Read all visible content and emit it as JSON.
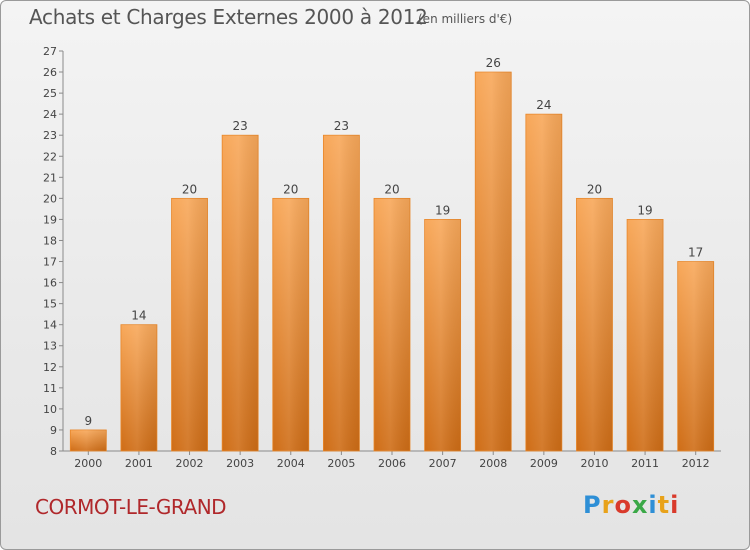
{
  "header": {
    "title": "Achats et Charges Externes 2000 à 2012",
    "unit": "(en milliers d'€)"
  },
  "footer": {
    "city": "CORMOT-LE-GRAND",
    "logo_letters": [
      "P",
      "r",
      "o",
      "x",
      "i",
      "t",
      "i"
    ],
    "logo_colors": [
      "#2e8fd6",
      "#e8a21a",
      "#d93a2b",
      "#3aa847",
      "#2e8fd6",
      "#e8a21a",
      "#d93a2b"
    ]
  },
  "chart_data": {
    "type": "bar",
    "categories": [
      "2000",
      "2001",
      "2002",
      "2003",
      "2004",
      "2005",
      "2006",
      "2007",
      "2008",
      "2009",
      "2010",
      "2011",
      "2012"
    ],
    "values": [
      9,
      14,
      20,
      23,
      20,
      23,
      20,
      19,
      26,
      24,
      20,
      19,
      17
    ],
    "ylim": [
      8,
      27
    ],
    "yticks": [
      8,
      9,
      10,
      11,
      12,
      13,
      14,
      15,
      16,
      17,
      18,
      19,
      20,
      21,
      22,
      23,
      24,
      25,
      26,
      27
    ],
    "ytick_labels": [
      "8",
      "9",
      "10",
      "11",
      "12",
      "13",
      "14",
      "15",
      "16",
      "17",
      "18",
      "19",
      "20",
      "21",
      "22",
      "23",
      "24",
      "25",
      "26",
      "27"
    ],
    "grid": false,
    "data_labels": true,
    "bar_color": "#f0953a"
  }
}
